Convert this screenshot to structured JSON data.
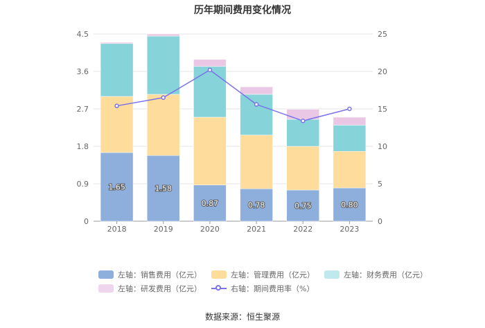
{
  "chart_data": {
    "type": "bar",
    "stacked": true,
    "title": "历年期间费用变化情况",
    "categories": [
      "2018",
      "2019",
      "2020",
      "2021",
      "2022",
      "2023"
    ],
    "left_axis": {
      "min": 0,
      "max": 4.5,
      "ticks": [
        "0",
        "0.9",
        "1.8",
        "2.7",
        "3.6",
        "4.5"
      ]
    },
    "right_axis": {
      "min": 0,
      "max": 25,
      "ticks": [
        "0",
        "5",
        "10",
        "15",
        "20",
        "25"
      ]
    },
    "series": [
      {
        "name": "左轴：销售费用（亿元）",
        "axis": "left",
        "type": "bar",
        "color": "#8eaedc",
        "values": [
          1.65,
          1.58,
          0.87,
          0.78,
          0.75,
          0.8
        ],
        "labels": [
          "1.65",
          "1.58",
          "0.87",
          "0.78",
          "0.75",
          "0.80"
        ]
      },
      {
        "name": "左轴：管理费用（亿元）",
        "axis": "left",
        "type": "bar",
        "color": "#fddc9c",
        "values": [
          1.35,
          1.47,
          1.63,
          1.29,
          1.05,
          0.88
        ]
      },
      {
        "name": "左轴：财务费用（亿元）",
        "axis": "left",
        "type": "bar",
        "color": "#86d3d9",
        "values": [
          1.27,
          1.4,
          1.22,
          0.98,
          0.65,
          0.63
        ]
      },
      {
        "name": "左轴：研发费用（亿元）",
        "axis": "left",
        "type": "bar",
        "color": "#eac7e4",
        "values": [
          0.03,
          0.05,
          0.17,
          0.18,
          0.24,
          0.19
        ]
      },
      {
        "name": "右轴：期间费用率（%）",
        "axis": "right",
        "type": "line",
        "color": "#7a73e8",
        "values": [
          15.4,
          16.5,
          20.2,
          15.6,
          13.4,
          15.0
        ]
      }
    ]
  },
  "source": "数据来源：恒生聚源"
}
